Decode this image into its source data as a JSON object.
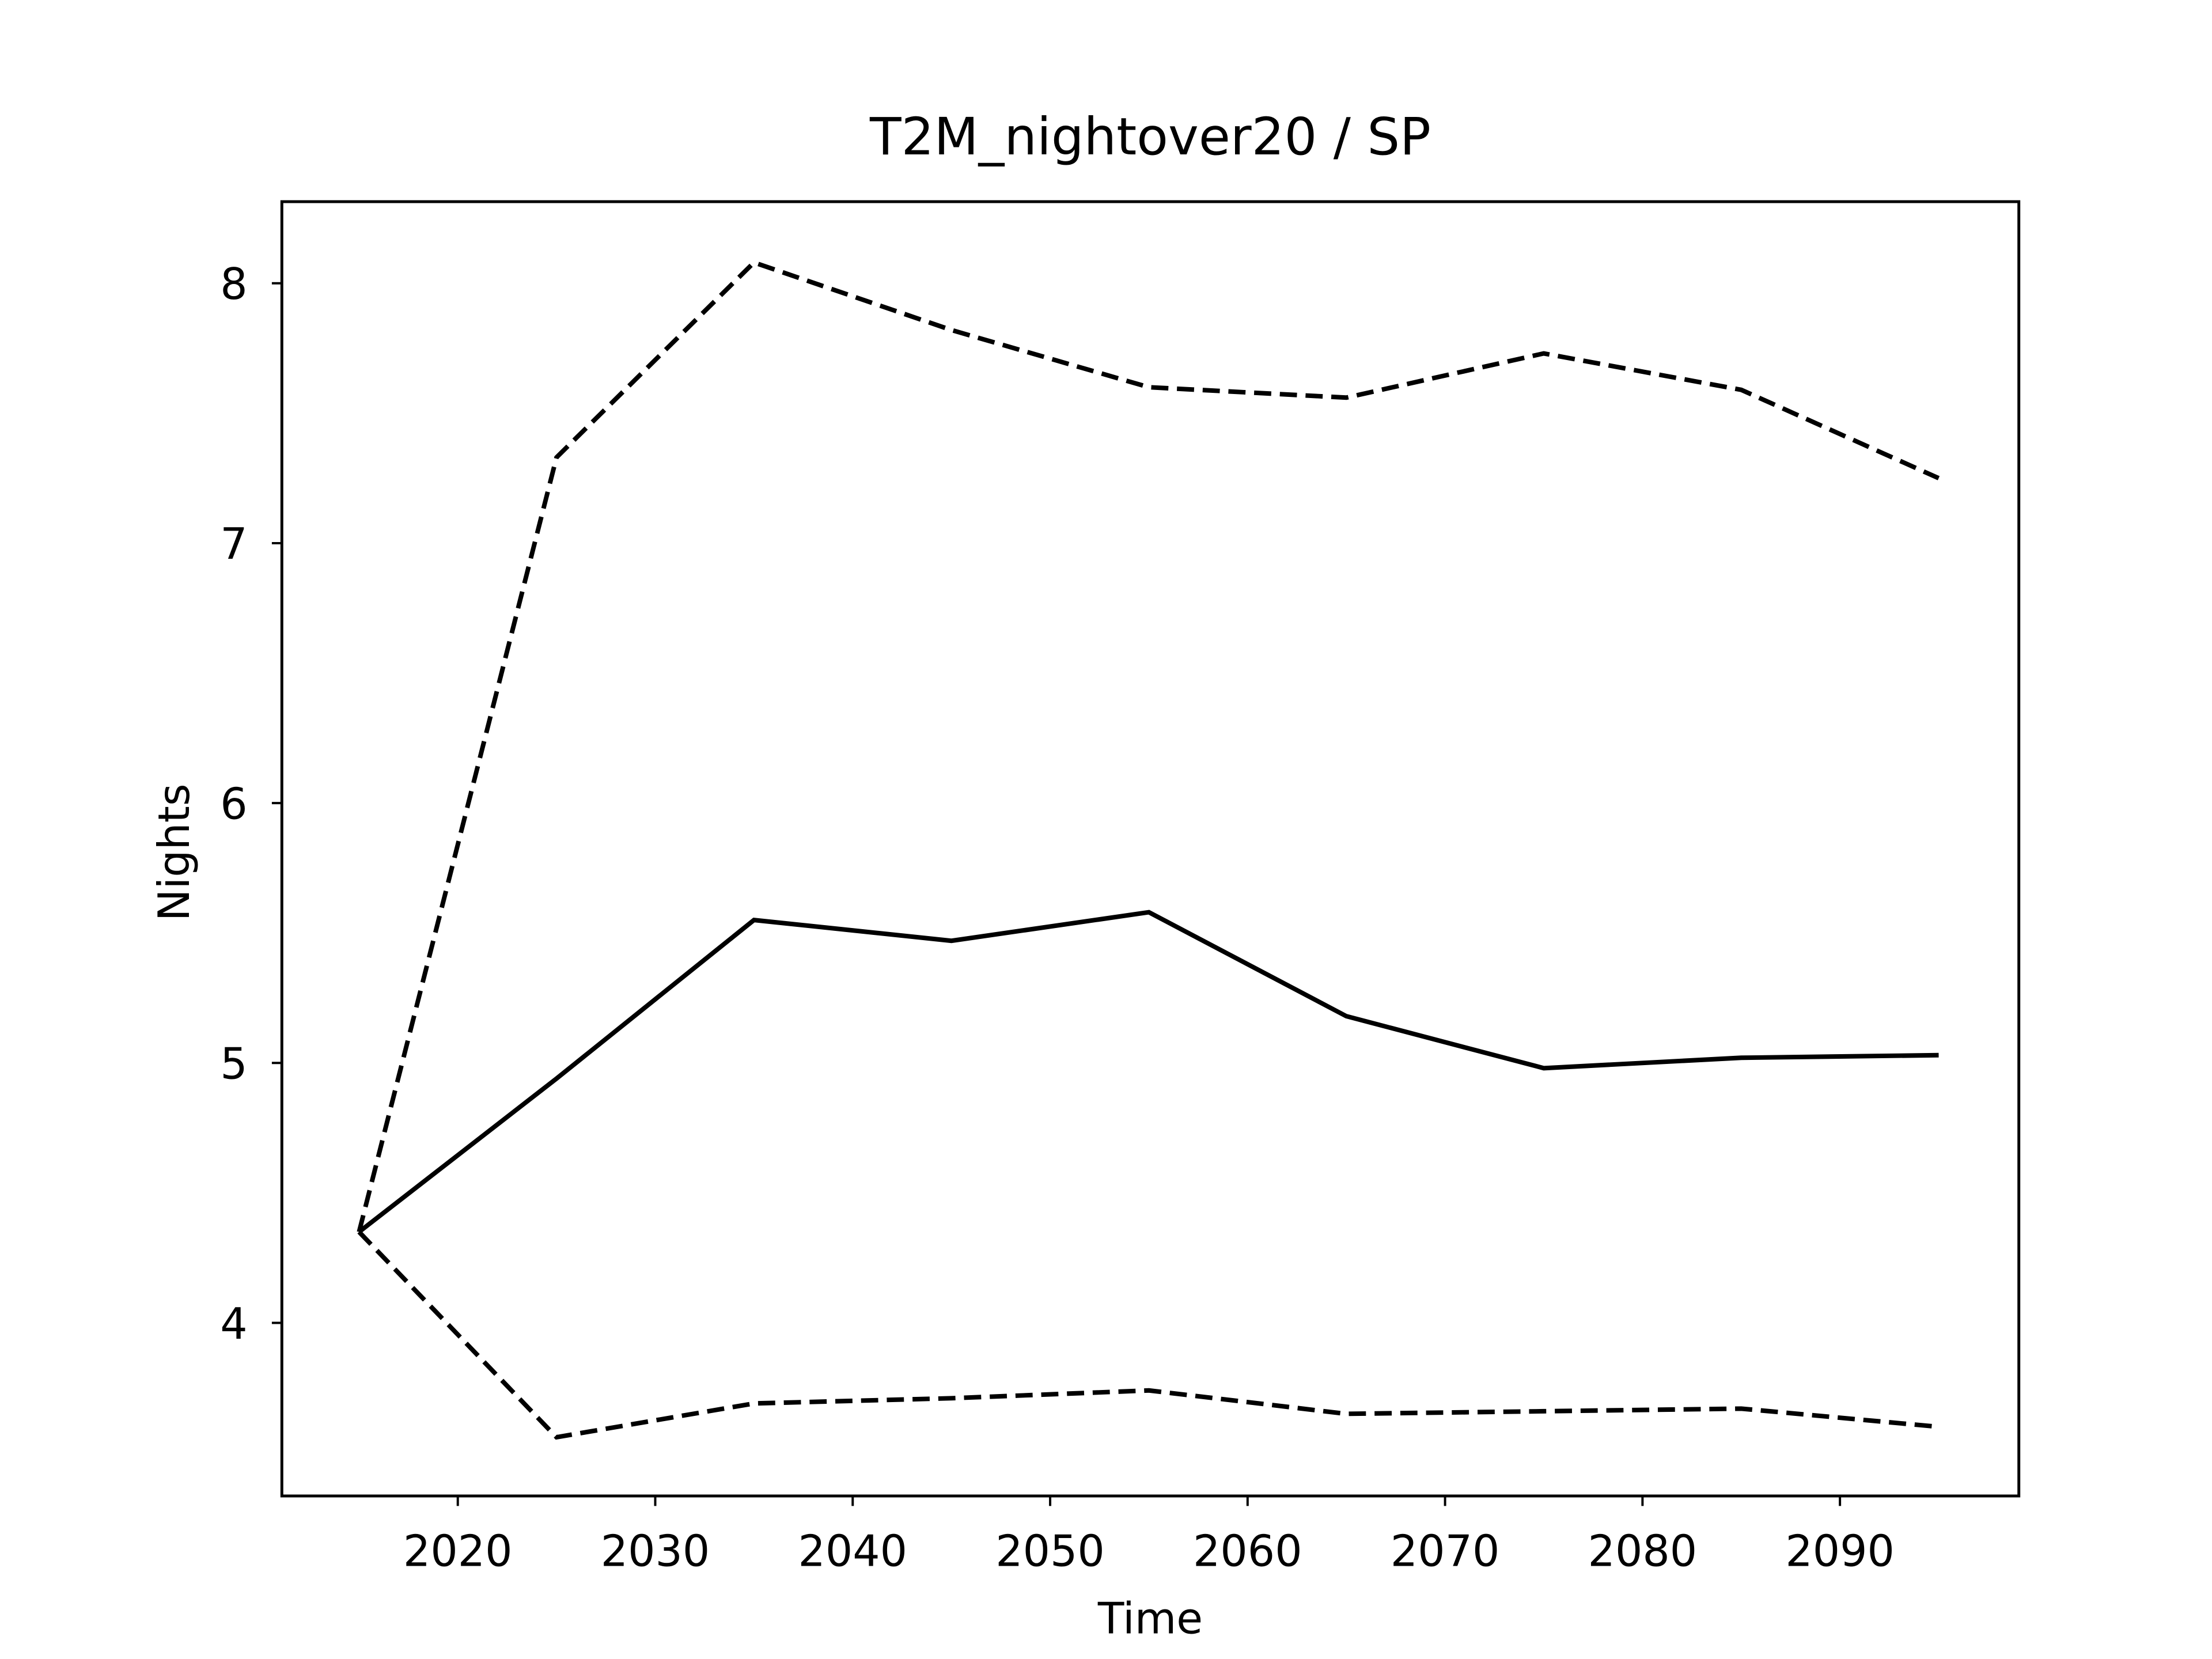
{
  "chart_data": {
    "type": "line",
    "title": "T2M_nightover20 / SP",
    "x_label": "Time",
    "y_label": "Nights",
    "x": [
      2015,
      2025,
      2035,
      2045,
      2055,
      2065,
      2075,
      2085,
      2095
    ],
    "series": [
      {
        "color": "#000000",
        "linestyle": "solid",
        "values": [
          4.35,
          4.94,
          5.55,
          5.47,
          5.58,
          5.18,
          4.98,
          5.02,
          5.03
        ]
      },
      {
        "color": "#000000",
        "linestyle": "dashed",
        "values": [
          4.35,
          7.33,
          8.08,
          7.82,
          7.6,
          7.56,
          7.73,
          7.59,
          7.25
        ]
      },
      {
        "color": "#000000",
        "linestyle": "dashed",
        "values": [
          4.35,
          3.56,
          3.69,
          3.71,
          3.74,
          3.65,
          3.66,
          3.67,
          3.6
        ]
      }
    ],
    "xlim": [
      2011.09,
      2099.06
    ],
    "xticks": [
      2020,
      2030,
      2040,
      2050,
      2060,
      2070,
      2080,
      2090
    ],
    "ylim": [
      3.334,
      8.314
    ],
    "yticks": [
      4,
      5,
      6,
      7,
      8
    ]
  }
}
